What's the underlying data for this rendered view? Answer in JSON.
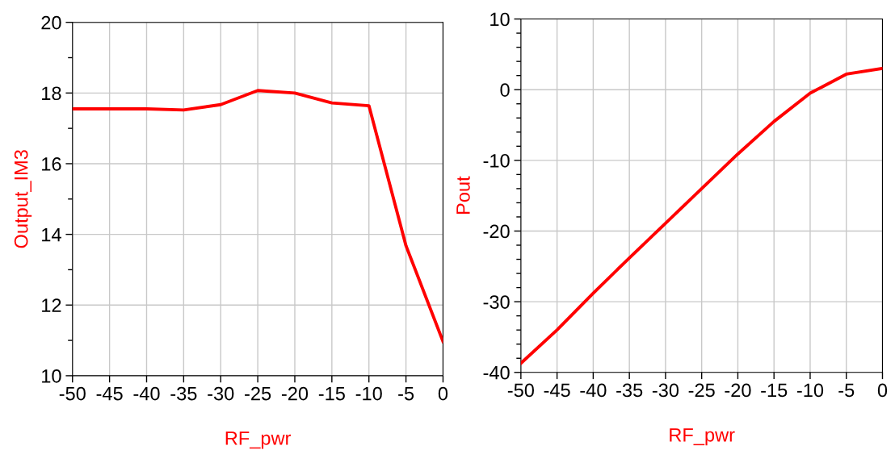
{
  "chart_data": [
    {
      "type": "line",
      "xlabel": "RF_pwr",
      "ylabel": "Output_IM3",
      "x": [
        -50,
        -45,
        -40,
        -35,
        -30,
        -25,
        -20,
        -15,
        -10,
        -5,
        0
      ],
      "series": [
        {
          "color": "#ff0000",
          "values": [
            17.55,
            17.55,
            17.55,
            17.52,
            17.67,
            18.07,
            18.0,
            17.72,
            17.64,
            13.68,
            10.97
          ]
        }
      ],
      "xlim": [
        -50,
        0
      ],
      "xticks": [
        -50,
        -45,
        -40,
        -35,
        -30,
        -25,
        -20,
        -15,
        -10,
        -5,
        0
      ],
      "ylim": [
        10,
        20
      ],
      "yticks": [
        10,
        {
          "value": 11,
          "label": null
        },
        12,
        {
          "value": 13,
          "label": null
        },
        14,
        {
          "value": 15,
          "label": null
        },
        16,
        {
          "value": 17,
          "label": null
        },
        18,
        {
          "value": 19,
          "label": null
        },
        20
      ],
      "grid": true,
      "line_style": "solid"
    },
    {
      "type": "line",
      "xlabel": "RF_pwr",
      "ylabel": "Pout",
      "x": [
        -50,
        -45,
        -40,
        -35,
        -30,
        -25,
        -20,
        -15,
        -10,
        -5,
        0
      ],
      "series": [
        {
          "color": "#ff0000",
          "values": [
            -38.7,
            -34.0,
            -28.8,
            -23.8,
            -18.9,
            -14.0,
            -9.1,
            -4.5,
            -0.5,
            2.2,
            3.0
          ]
        }
      ],
      "xlim": [
        -50,
        0
      ],
      "xticks": [
        -50,
        -45,
        -40,
        -35,
        -30,
        -25,
        -20,
        -15,
        -10,
        -5,
        0
      ],
      "ylim": [
        -40,
        10
      ],
      "yticks": [
        -40,
        {
          "value": -38,
          "label": null
        },
        {
          "value": -36,
          "label": null
        },
        {
          "value": -34,
          "label": null
        },
        {
          "value": -32,
          "label": null
        },
        -30,
        {
          "value": -28,
          "label": null
        },
        {
          "value": -26,
          "label": null
        },
        {
          "value": -24,
          "label": null
        },
        {
          "value": -22,
          "label": null
        },
        -20,
        {
          "value": -18,
          "label": null
        },
        {
          "value": -16,
          "label": null
        },
        {
          "value": -14,
          "label": null
        },
        {
          "value": -12,
          "label": null
        },
        -10,
        {
          "value": -8,
          "label": null
        },
        {
          "value": -6,
          "label": null
        },
        {
          "value": -4,
          "label": null
        },
        {
          "value": -2,
          "label": null
        },
        0,
        {
          "value": 2,
          "label": null
        },
        {
          "value": 4,
          "label": null
        },
        {
          "value": 6,
          "label": null
        },
        {
          "value": 8,
          "label": null
        },
        10
      ],
      "grid": true,
      "line_style": "solid"
    }
  ]
}
